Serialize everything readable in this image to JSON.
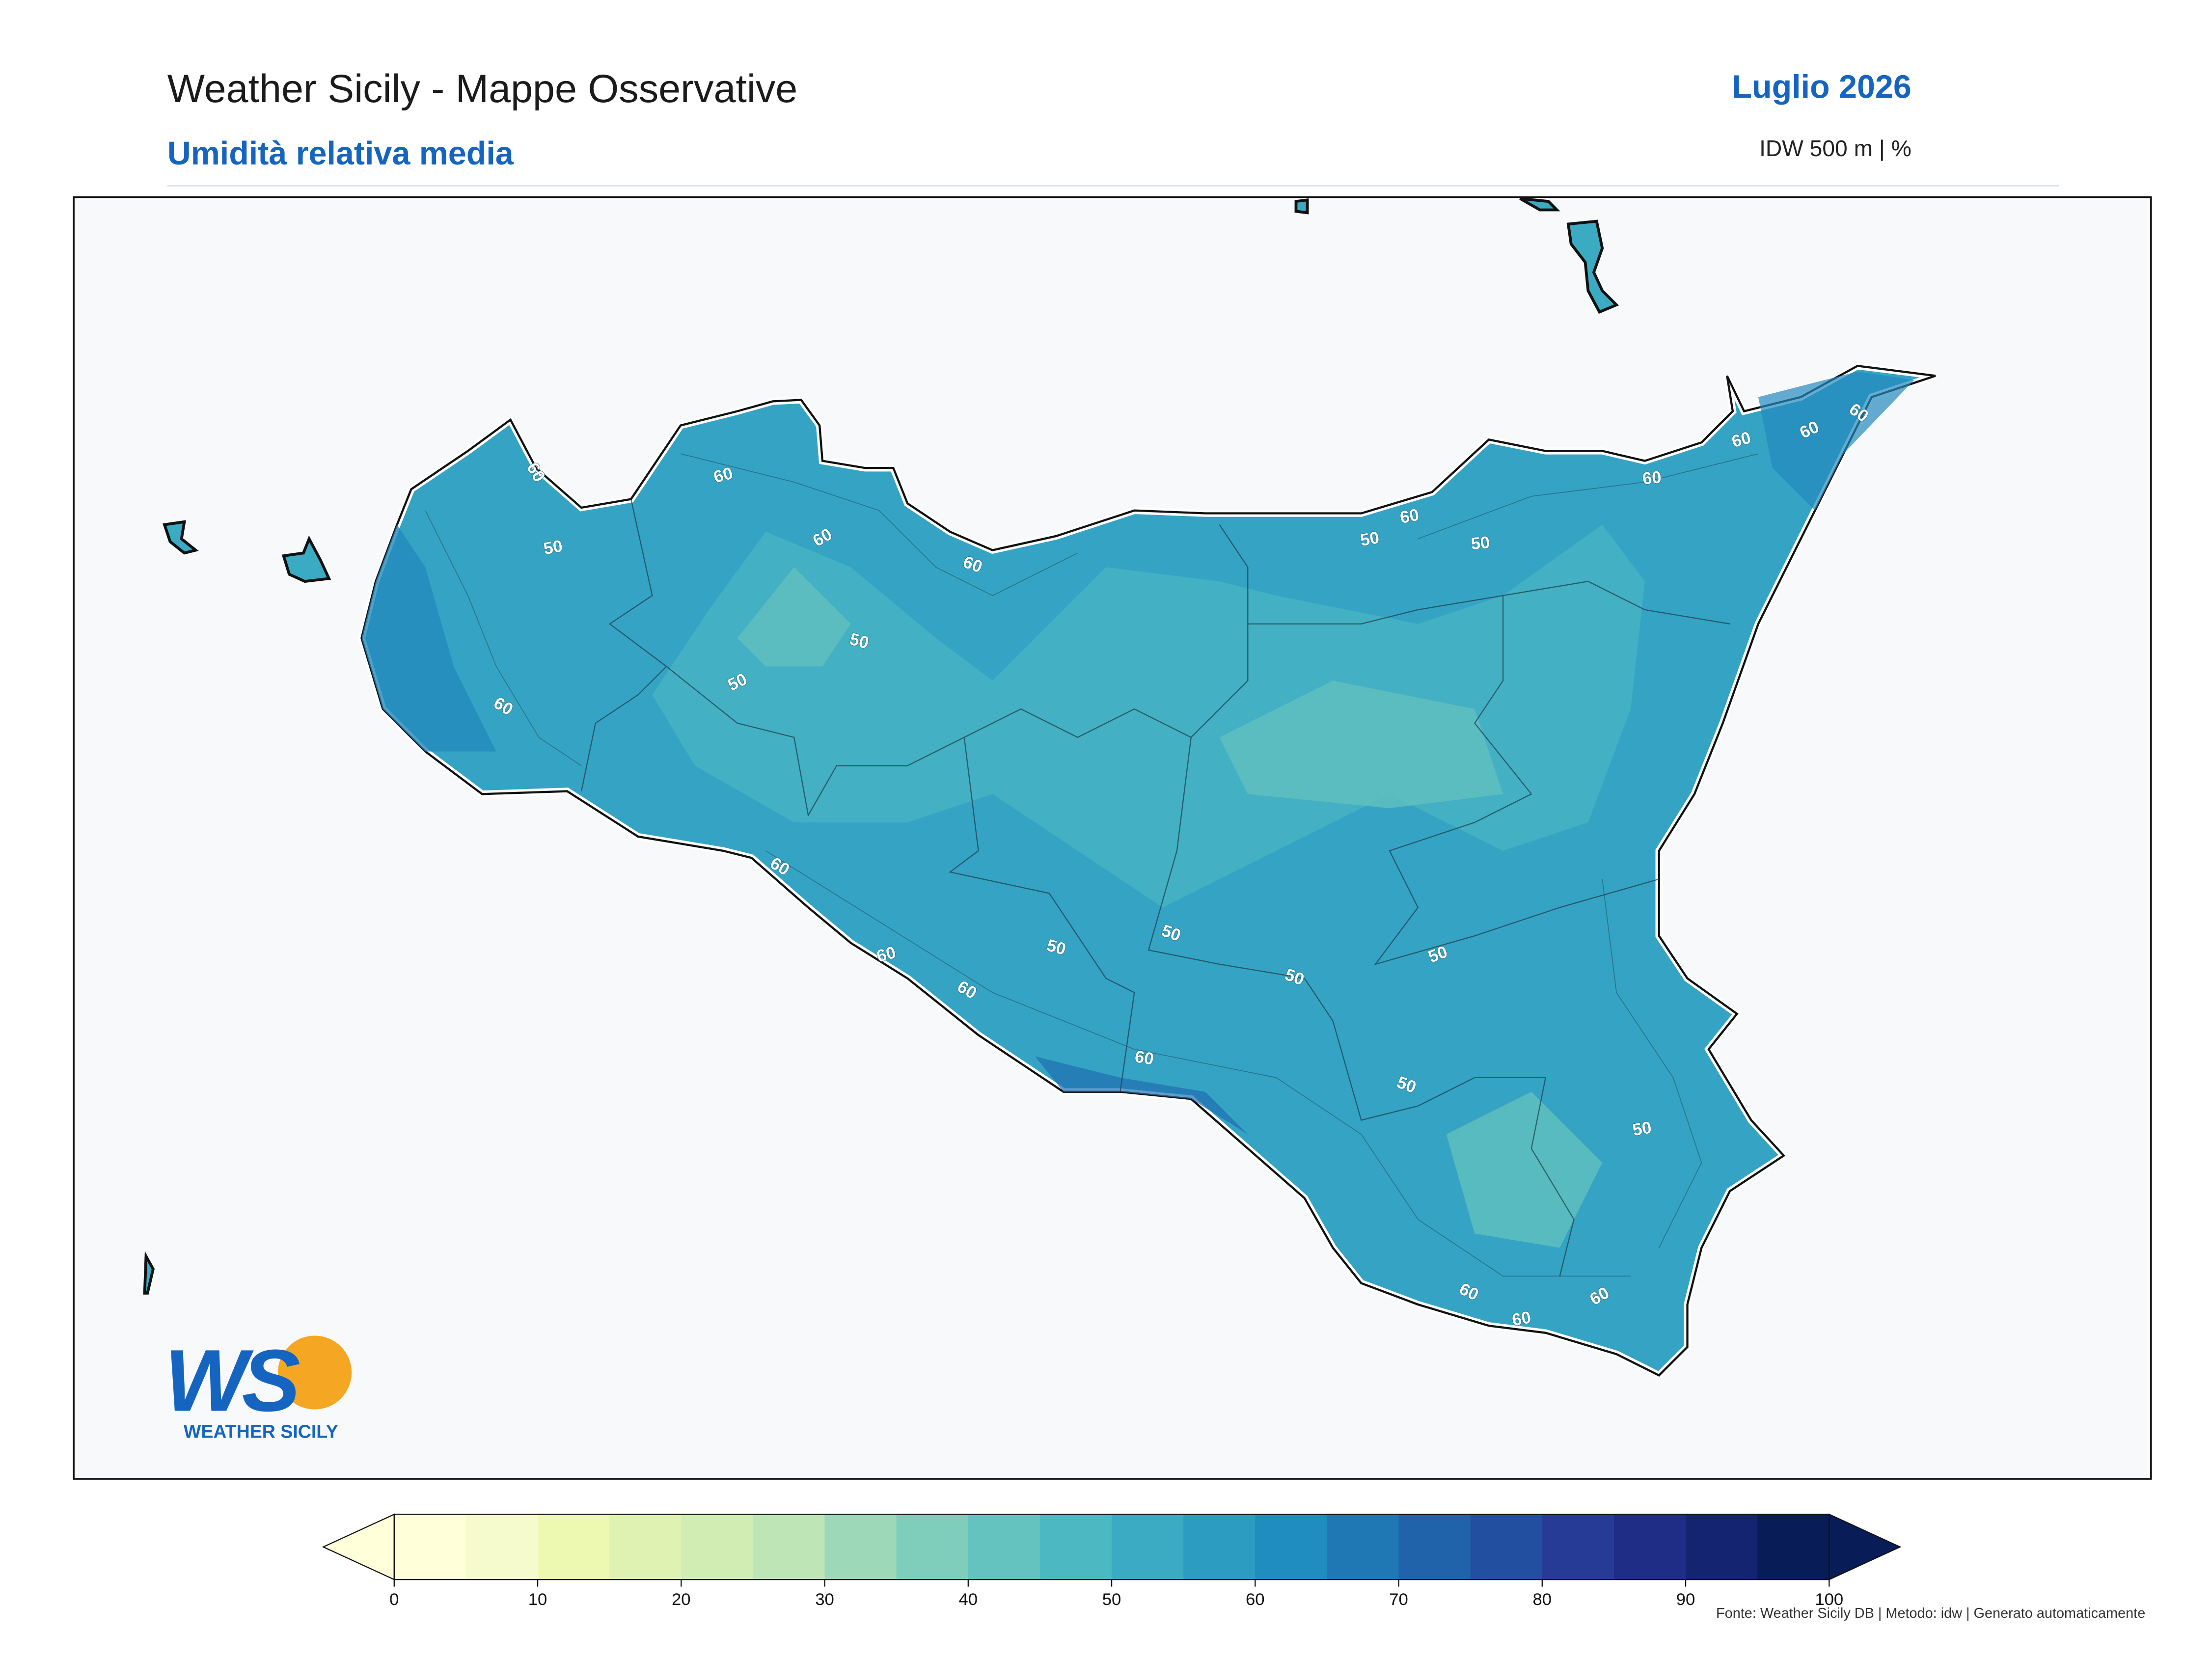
{
  "header": {
    "title": "Weather Sicily - Mappe Osservative",
    "subtitle": "Umidità relativa media",
    "period": "Luglio 2026",
    "method": "IDW 500 m | %"
  },
  "map": {
    "contour_labels": [
      60,
      60,
      50,
      60,
      60,
      50,
      50,
      60,
      60,
      60,
      60,
      50,
      50,
      50,
      50,
      60,
      50,
      50,
      60,
      60,
      60,
      50,
      60,
      50,
      60,
      60,
      60,
      60
    ]
  },
  "colorbar": {
    "range": [
      0,
      100
    ],
    "ticks": [
      0,
      10,
      20,
      30,
      40,
      50,
      60,
      70,
      80,
      90,
      100
    ],
    "colors": [
      "#ffffd9",
      "#f6fbcd",
      "#edf8b1",
      "#dff2b2",
      "#d1edb3",
      "#bde5b5",
      "#9dd8b8",
      "#7fcdbb",
      "#65c3bf",
      "#4cb8c2",
      "#3aabc3",
      "#2c9dc1",
      "#1f8dbf",
      "#1f78b4",
      "#2163aa",
      "#234fa0",
      "#253b96",
      "#1f2d86",
      "#152470",
      "#081d58"
    ]
  },
  "logo": {
    "mark": "WS",
    "name": "WEATHER SICILY"
  },
  "footer": "Fonte: Weather Sicily DB | Metodo: idw | Generato automaticamente"
}
